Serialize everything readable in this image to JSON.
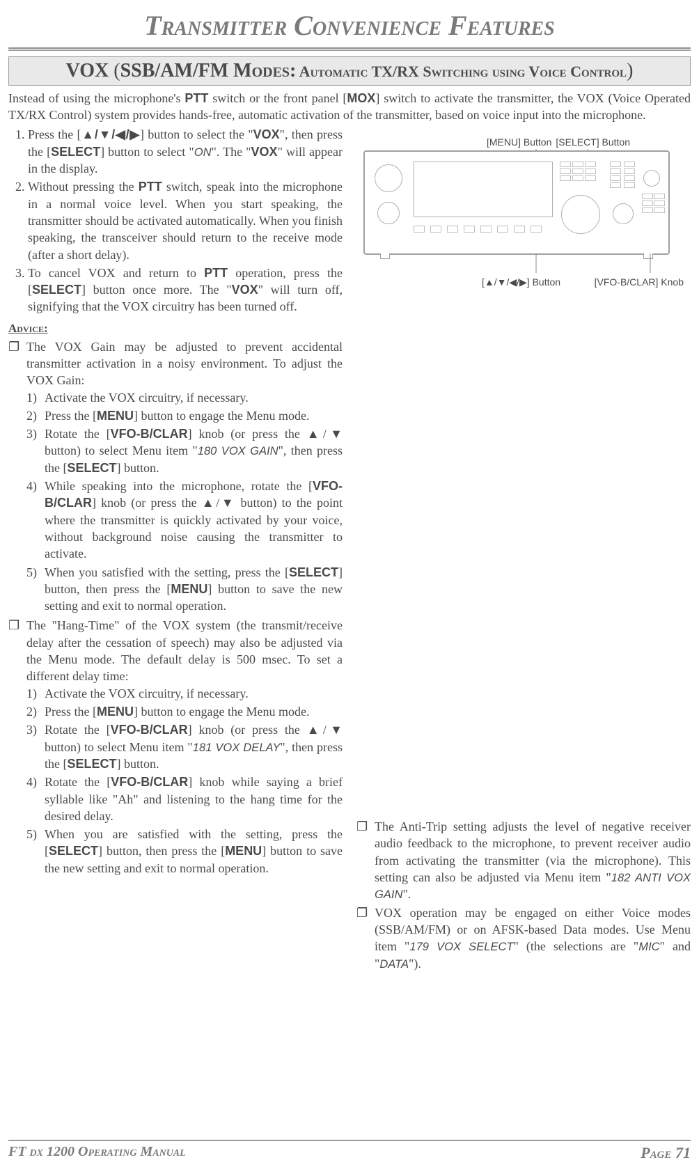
{
  "chapter_title": "Transmitter Convenience Features",
  "section_banner": {
    "lead": "VOX",
    "open": "(",
    "mid": "SSB/AM/FM Modes:",
    "tail": " Automatic TX/RX Switching using Voice Control",
    "close": ")"
  },
  "intro": "Instead of using the microphone's PTT switch or the front panel [MOX] switch to activate the transmitter, the VOX (Voice Operated TX/RX Control) system provides hands-free, automatic activation of the transmitter, based on voice input into the microphone.",
  "step1_a": "Press the [",
  "step1_arrows": "▲/▼/◀/▶",
  "step1_b": "] button to select the \"",
  "step1_vox": "VOX",
  "step1_c": "\", then press the [",
  "step1_select": "SELECT",
  "step1_d": "] button to select \"",
  "step1_on": "ON",
  "step1_e": "\". The \"",
  "step1_vox2": "VOX",
  "step1_f": "\" will appear in the display.",
  "step2_a": "Without pressing the ",
  "step2_ptt": "PTT",
  "step2_b": " switch, speak into the microphone in a normal voice level. When you start speaking, the transmitter should be activated automatically. When you finish speaking, the transceiver should return to the receive mode (after a short delay).",
  "step3_a": "To cancel VOX and return to ",
  "step3_ptt": "PTT",
  "step3_b": " operation, press the [",
  "step3_select": "SELECT",
  "step3_c": "] button once more. The \"",
  "step3_vox": "VOX",
  "step3_d": "\" will turn off, signifying that the VOX circuitry has been turned off.",
  "advice_label": "Advice:",
  "adv1_intro": "The VOX Gain may be adjusted to prevent accidental transmitter activation in a noisy environment. To adjust the VOX Gain:",
  "a1": "Activate the VOX circuitry, if necessary.",
  "a2_a": "Press the [",
  "a2_menu": "MENU",
  "a2_b": "] button to engage the Menu mode.",
  "a3_a": "Rotate the [",
  "a3_vfo": "VFO-B/CLAR",
  "a3_b": "] knob (or press the ▲/▼ button) to select Menu item \"",
  "a3_item": "180 VOX GAIN",
  "a3_c": "\", then press the [",
  "a3_select": "SELECT",
  "a3_d": "] button.",
  "a4_a": "While speaking into the microphone, rotate the [",
  "a4_vfo": "VFO-B/CLAR",
  "a4_b": "] knob (or press the ▲/▼ button) to the point where the transmitter is quickly activated by your voice, without background noise causing the transmitter to activate.",
  "a5_a": "When you satisfied with the setting, press the [",
  "a5_select": "SELECT",
  "a5_b": "] button, then press the [",
  "a5_menu": "MENU",
  "a5_c": "] button to save the new setting and exit to normal operation.",
  "adv2_intro": "The \"Hang-Time\" of the VOX system (the transmit/receive delay after the cessation of speech) may also be adjusted via the Menu mode. The default delay is 500 msec. To set a different delay time:",
  "b1": "Activate the VOX circuitry, if necessary.",
  "b2_a": "Press the [",
  "b2_menu": "MENU",
  "b2_b": "] button to engage the Menu mode.",
  "b3_a": "Rotate the [",
  "b3_vfo": "VFO-B/CLAR",
  "b3_b": "] knob (or press the ▲/▼ button) to select Menu item \"",
  "b3_item": "181 VOX DELAY",
  "b3_c": "\", then press the [",
  "b3_select": "SELECT",
  "b3_d": "] button.",
  "b4_a": "Rotate the [",
  "b4_vfo": "VFO-B/CLAR",
  "b4_b": "] knob while saying a brief syllable like \"Ah\" and listening to the hang time for the desired delay.",
  "b5_a": "When you are satisfied with the setting, press the [",
  "b5_select": "SELECT",
  "b5_b": "] button, then press the [",
  "b5_menu": "MENU",
  "b5_c": "] button to save the new setting and exit to normal operation.",
  "r1_a": "The Anti-Trip setting adjusts the level of negative receiver audio feedback to the microphone, to prevent receiver audio from activating the transmitter (via the microphone). This setting can also be adjusted via Menu item \"",
  "r1_item": "182 ANTI VOX GAIN",
  "r1_b": "\".",
  "r2_a": "VOX operation may be engaged on either Voice modes (SSB/AM/FM) or on AFSK-based Data modes. Use Menu item \"",
  "r2_item": "179 VOX SELECT",
  "r2_b": "\" (the selections are \"",
  "r2_mic": "MIC",
  "r2_c": "\" and \"",
  "r2_data": "DATA",
  "r2_d": "\").",
  "dia_menu": "[MENU] Button",
  "dia_select": "[SELECT] Button",
  "dia_arrows": "[▲/▼/◀/▶] Button",
  "dia_vfo": "[VFO-B/CLAR] Knob",
  "footer_manual": "FT dx 1200 Operating Manual",
  "footer_page": "Page 71"
}
